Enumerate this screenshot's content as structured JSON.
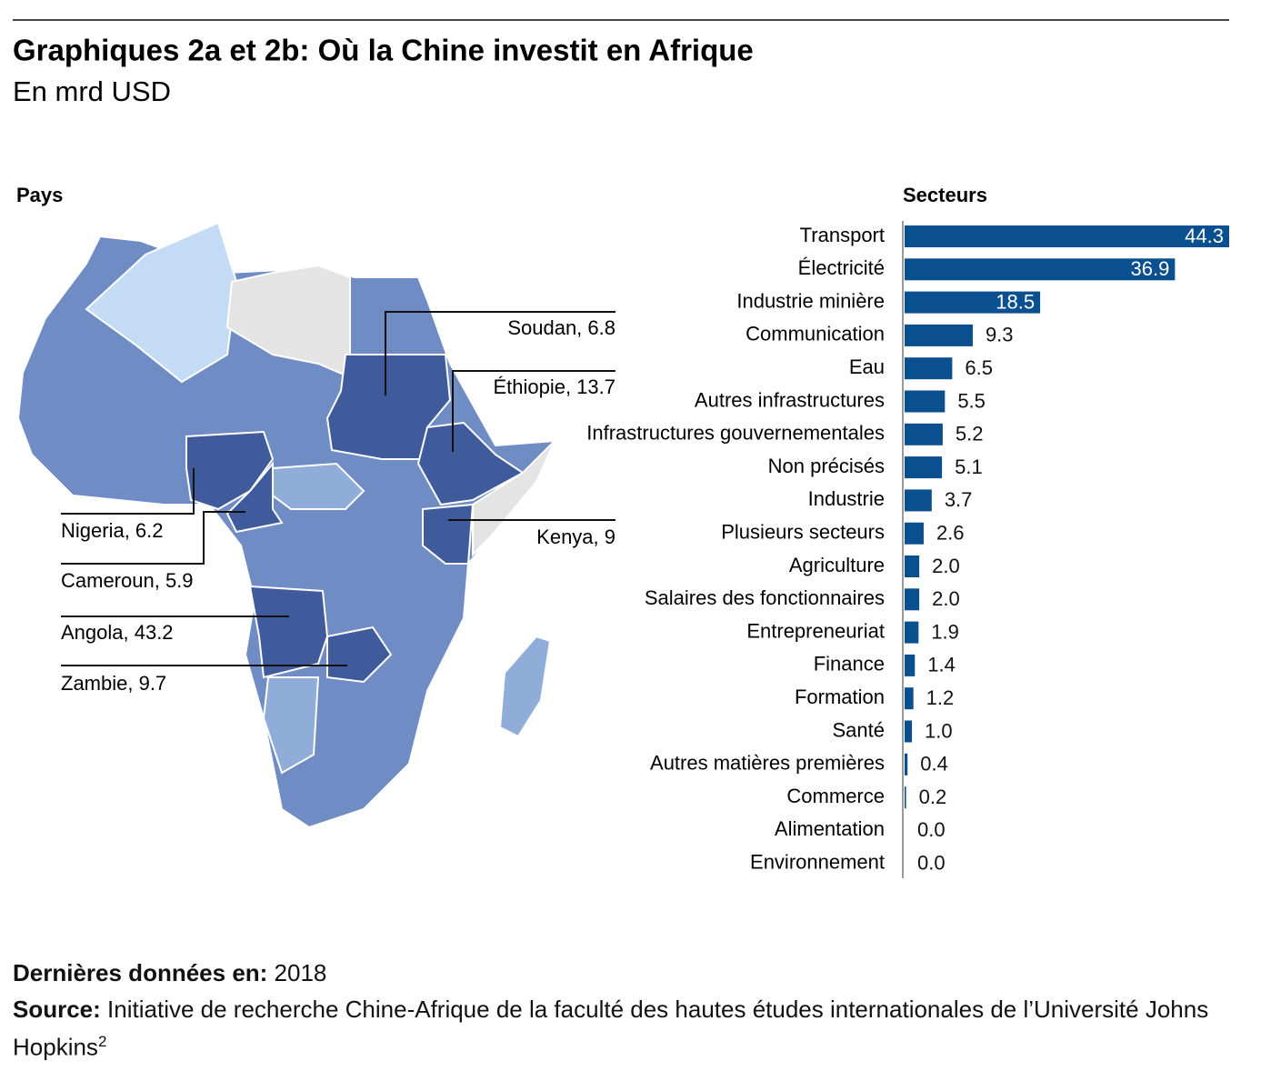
{
  "header": {
    "title": "Graphiques 2a et 2b: Où la Chine investit en Afrique",
    "subtitle": "En mrd USD"
  },
  "chart_data": [
    {
      "type": "map",
      "title": "Pays",
      "color": "#3f5b9c",
      "values": [
        6.8,
        13.7,
        9,
        6.2,
        5.9,
        43.2,
        9.7
      ],
      "value_labels": [
        "Soudan, 6.8",
        "Éthiopie, 13.7",
        "Kenya, 9",
        "Nigeria, 6.2",
        "Cameroun, 5.9",
        "Angola, 43.2",
        "Zambie, 9.7"
      ]
    },
    {
      "type": "hbar",
      "title": "Secteurs",
      "color": "#0a4f8f",
      "categories": [
        "Transport",
        "Électricité",
        "Industrie minière",
        "Communication",
        "Eau",
        "Autres infrastructures",
        "Infrastructures gouvernementales",
        "Non précisés",
        "Industrie",
        "Plusieurs secteurs",
        "Agriculture",
        "Salaires des fonctionnaires",
        "Entrepreneuriat",
        "Finance",
        "Formation",
        "Santé",
        "Autres matières premières",
        "Commerce",
        "Alimentation",
        "Environnement"
      ],
      "values": [
        44.3,
        36.9,
        18.5,
        9.3,
        6.5,
        5.5,
        5.2,
        5.1,
        3.7,
        2.6,
        2.0,
        2.0,
        1.9,
        1.4,
        1.2,
        1.0,
        0.4,
        0.2,
        0.0,
        0.0
      ],
      "value_labels": [
        "44.3",
        "36.9",
        "18.5",
        "9.3",
        "6.5",
        "5.5",
        "5.2",
        "5.1",
        "3.7",
        "2.6",
        "2.0",
        "2.0",
        "1.9",
        "1.4",
        "1.2",
        "1.0",
        "0.4",
        "0.2",
        "0.0",
        "0.0"
      ],
      "xlim": [
        0,
        44.3
      ]
    }
  ],
  "footer": {
    "date_label": "Dernières données en:",
    "date": "2018",
    "source_label": "Source:",
    "source": "Initiative de recherche Chine-Afrique de la faculté des hautes études internationales de l’Université Johns Hopkins",
    "note": "2"
  }
}
